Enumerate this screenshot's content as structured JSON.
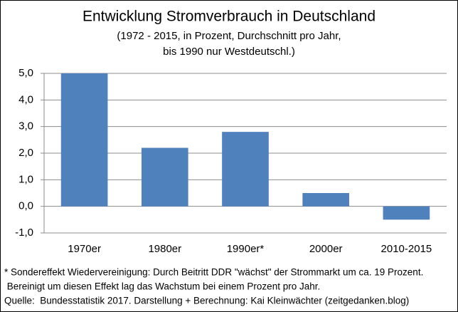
{
  "chart_data": {
    "type": "bar",
    "title": "Entwicklung Stromverbrauch in Deutschland",
    "subtitle": [
      "(1972 - 2015, in Prozent, Durchschnitt pro Jahr,",
      "bis 1990 nur Westdeutschl.)"
    ],
    "categories": [
      "1970er",
      "1980er",
      "1990er*",
      "2000er",
      "2010-2015"
    ],
    "values": [
      5.0,
      2.2,
      2.8,
      0.5,
      -0.5
    ],
    "color": "#4f81bd",
    "ylim": [
      -1,
      5
    ],
    "yticks": [
      {
        "value": -1,
        "label": "-1,0"
      },
      {
        "value": 0,
        "label": "0,0"
      },
      {
        "value": 1,
        "label": "1,0"
      },
      {
        "value": 2,
        "label": "2,0"
      },
      {
        "value": 3,
        "label": "3,0"
      },
      {
        "value": 4,
        "label": "4,0"
      },
      {
        "value": 5,
        "label": "5,0"
      }
    ],
    "grid": true,
    "notes": [
      "* Sondereffekt Wiedervereinigung: Durch Beitritt DDR \"wächst\" der Strommarkt um ca. 19 Prozent.",
      " Bereinigt um diesen Effekt lag das Wachstum bei einem Prozent pro Jahr.",
      "Quelle:  Bundesstatistik 2017. Darstellung + Berechnung: Kai Kleinwächter (zeitgedanken.blog)"
    ]
  }
}
